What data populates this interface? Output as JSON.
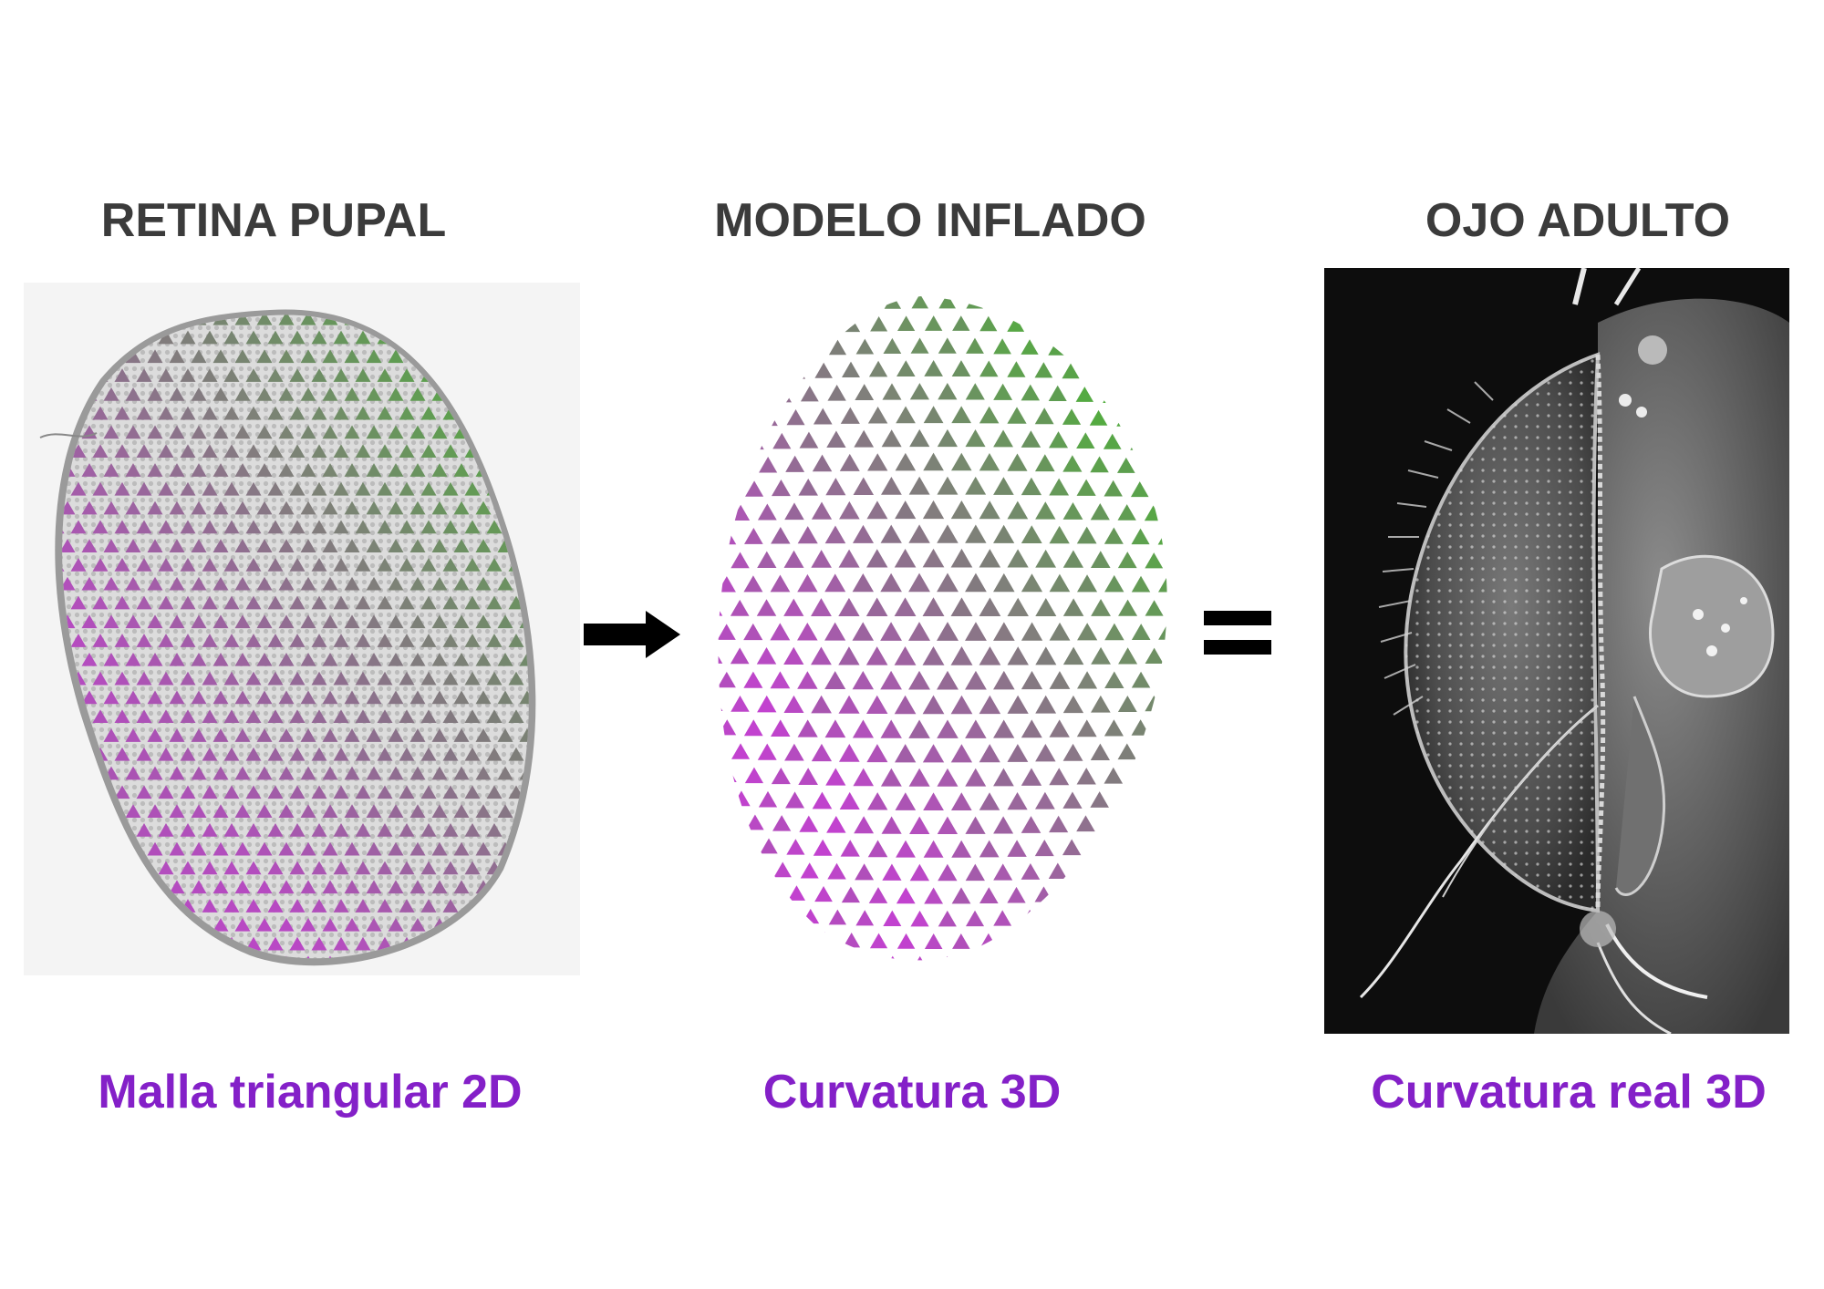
{
  "panels": [
    {
      "title": "RETINA PUPAL",
      "caption": "Malla triangular 2D"
    },
    {
      "title": "MODELO INFLADO",
      "caption": "Curvatura 3D"
    },
    {
      "title": "OJO ADULTO",
      "caption": "Curvatura real 3D"
    }
  ],
  "colors": {
    "title": "#3b3b3b",
    "caption": "#8420c8",
    "triangle_magenta": "#c63fd4",
    "triangle_green": "#4fb03a",
    "arrow": "#000000"
  },
  "icons": {
    "arrow": "right-arrow-icon",
    "equals": "equals-sign-icon"
  }
}
